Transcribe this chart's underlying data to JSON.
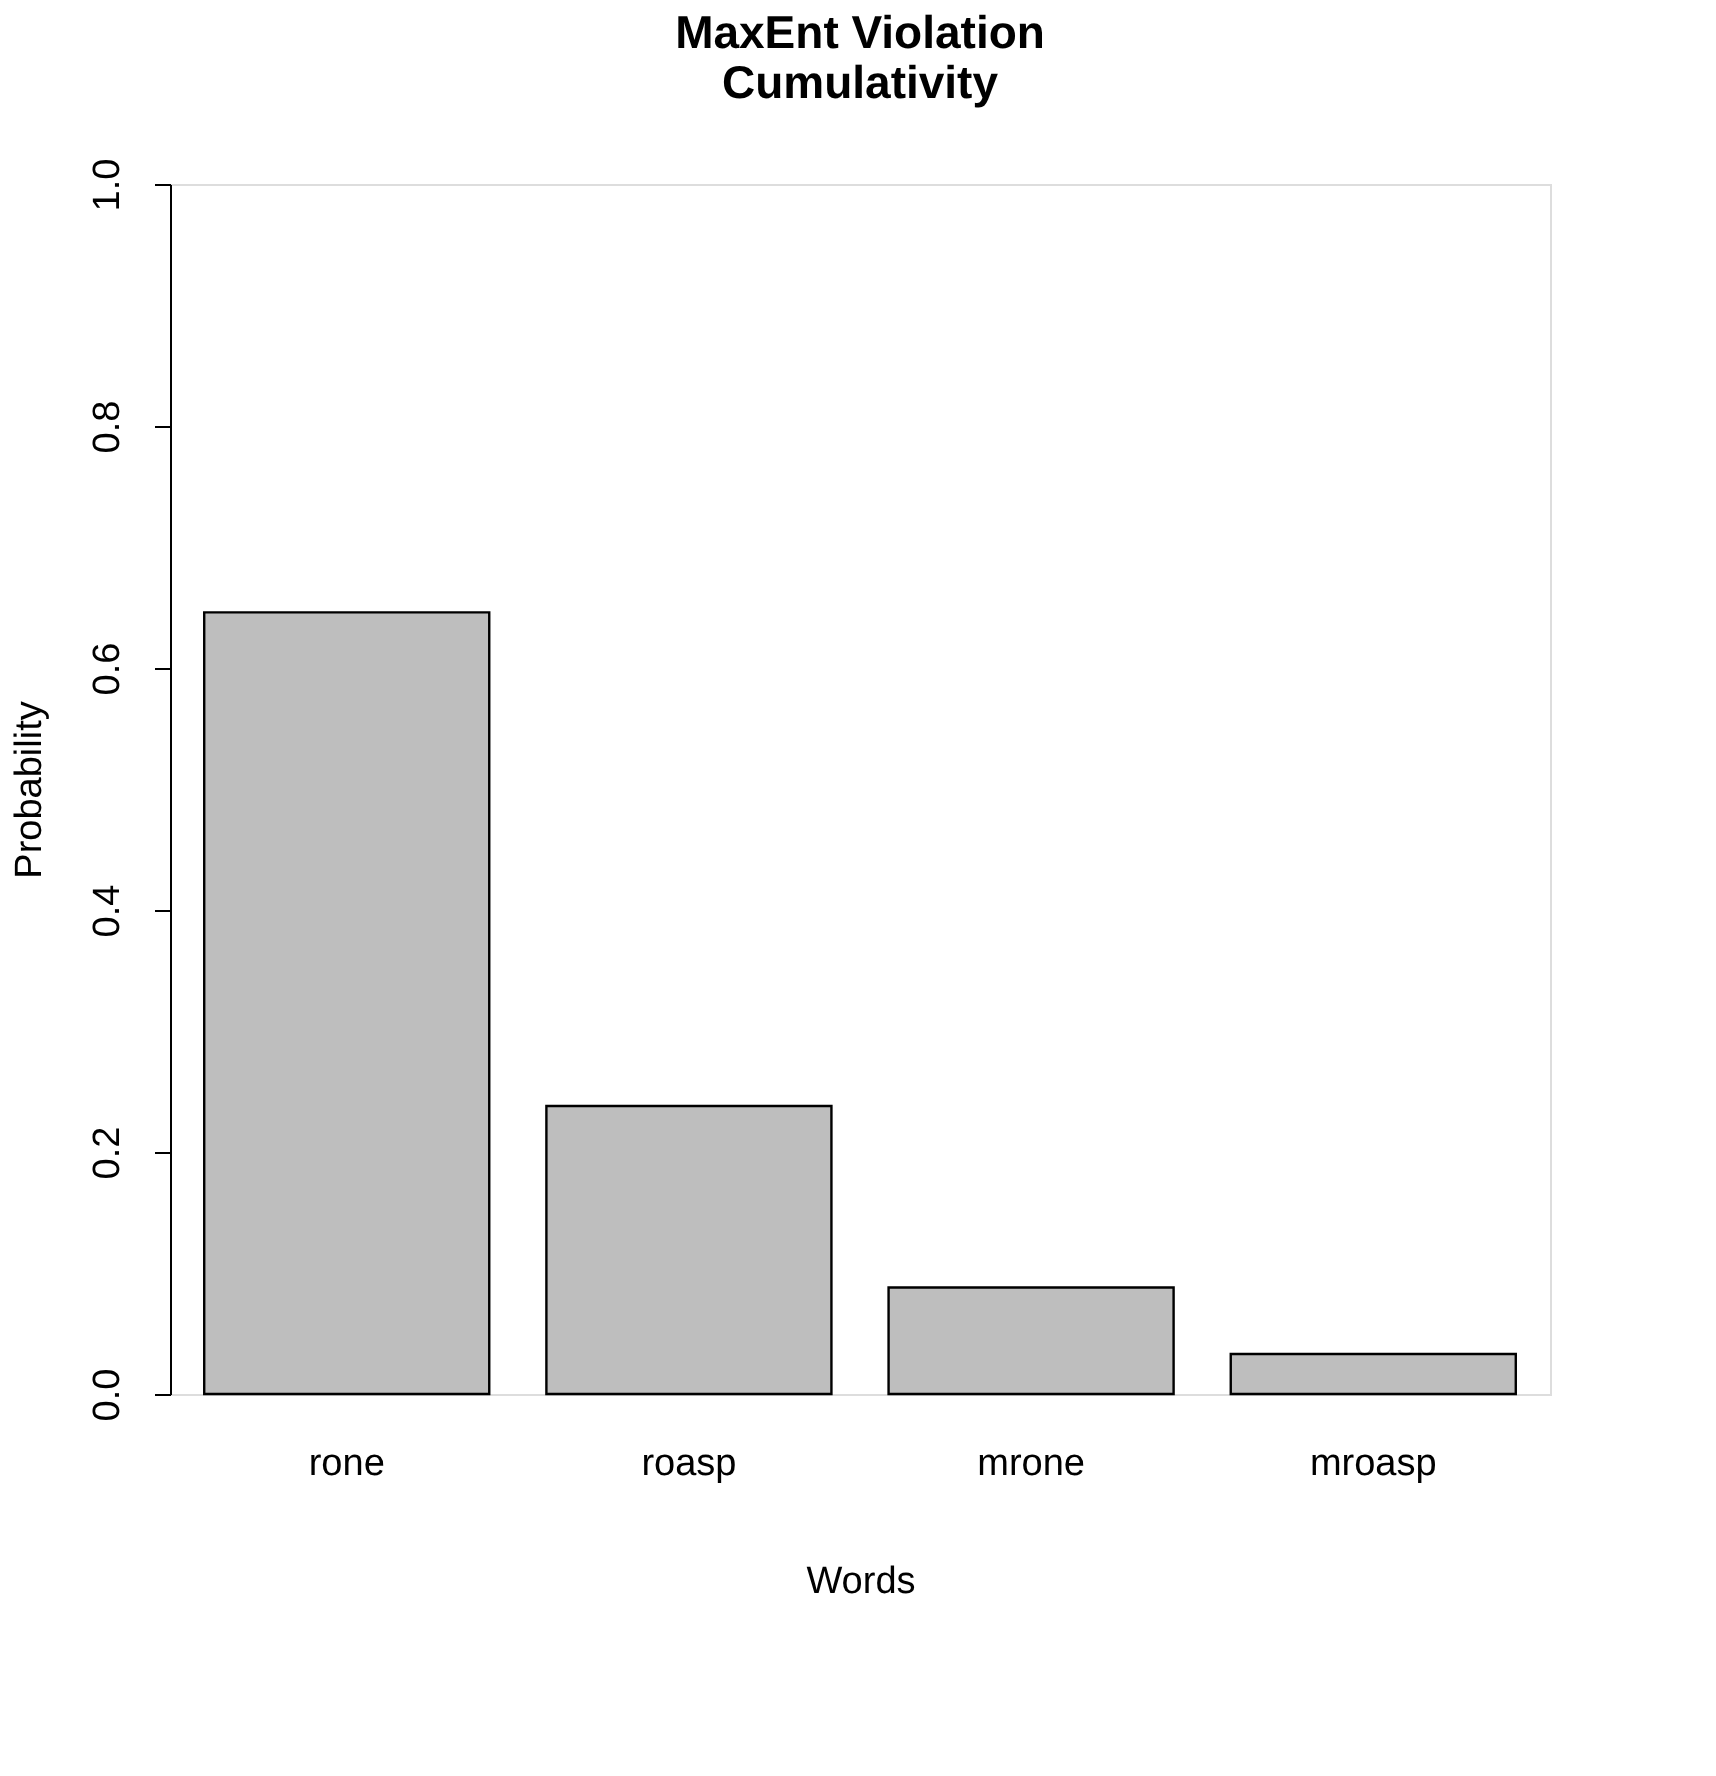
{
  "chart_data": {
    "type": "bar",
    "title": "MaxEnt Violation\nCumulativity",
    "xlabel": "Words",
    "ylabel": "Probability",
    "categories": [
      "rone",
      "roasp",
      "mrone",
      "mroasp"
    ],
    "values": [
      0.646,
      0.238,
      0.088,
      0.033
    ],
    "color": "#bebebe",
    "ylim": [
      0,
      1
    ],
    "yticks": [
      {
        "value": 0,
        "label": "0.0"
      },
      {
        "value": 0.2,
        "label": "0.2"
      },
      {
        "value": 0.4,
        "label": "0.4"
      },
      {
        "value": 0.6,
        "label": "0.6"
      },
      {
        "value": 0.8,
        "label": "0.8"
      },
      {
        "value": 1,
        "label": "1.0"
      }
    ],
    "grid": false
  }
}
